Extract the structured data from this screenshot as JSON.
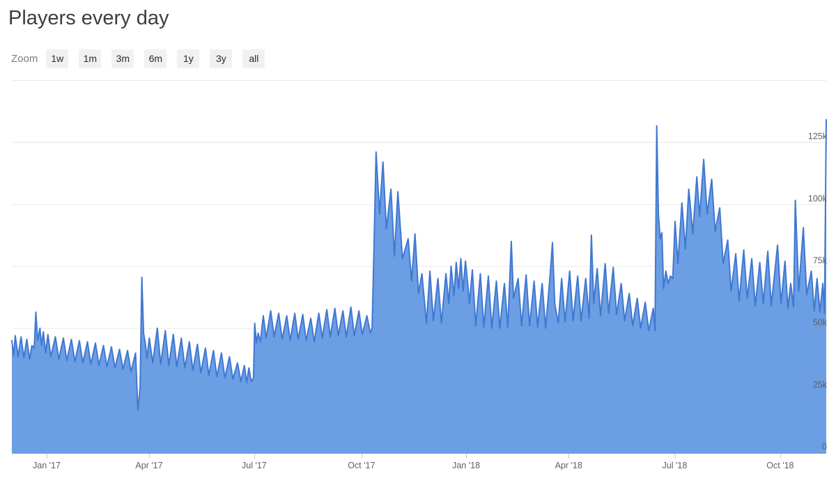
{
  "header": {
    "title": "Players every day"
  },
  "zoom_bar": {
    "label": "Zoom",
    "buttons": [
      "1w",
      "1m",
      "3m",
      "6m",
      "1y",
      "3y",
      "all"
    ]
  },
  "colors": {
    "area_fill": "#6c9ee3",
    "line_stroke": "#4078d2",
    "gridline": "rgba(0,0,0,0.09)",
    "baseline": "#d6d6d6",
    "tick_mark": "#cccccc",
    "axis_label": "#606060",
    "title_text": "#3d3d3d",
    "button_bg": "#f1f1f1",
    "button_text": "#2a2a2a"
  },
  "chart_data": {
    "type": "area",
    "title": "Players every day",
    "xlabel": "",
    "ylabel": "",
    "legend": "none",
    "grid": "horizontal",
    "y_axis_side": "right-inside",
    "ylim_players": [
      0,
      150000
    ],
    "value_unit": "thousands of concurrent players",
    "x_unit": "days since chart start (late Nov 2016); right edge = day 711 (mid Nov 2018)",
    "x_ticks": [
      {
        "day": 30.4,
        "label": "Jan '17"
      },
      {
        "day": 119.8,
        "label": "Apr '17"
      },
      {
        "day": 211.6,
        "label": "Jul '17"
      },
      {
        "day": 305.2,
        "label": "Oct '17"
      },
      {
        "day": 396.6,
        "label": "Jan '18"
      },
      {
        "day": 486.1,
        "label": "Apr '18"
      },
      {
        "day": 578.7,
        "label": "Jul '18"
      },
      {
        "day": 670.8,
        "label": "Oct '18"
      }
    ],
    "y_ticks": [
      {
        "k": 0,
        "label": "0"
      },
      {
        "k": 25,
        "label": "25k"
      },
      {
        "k": 50,
        "label": "50k"
      },
      {
        "k": 75,
        "label": "75k"
      },
      {
        "k": 100,
        "label": "100k"
      },
      {
        "k": 125,
        "label": "125k"
      },
      {
        "k": 150,
        "label": ""
      }
    ],
    "series": [
      {
        "name": "Players",
        "points_day_kplayers": [
          [
            0,
            45
          ],
          [
            1.5,
            39
          ],
          [
            3,
            47
          ],
          [
            5.5,
            38.5
          ],
          [
            8,
            46.5
          ],
          [
            10.5,
            38
          ],
          [
            13,
            45.5
          ],
          [
            15.5,
            37.5
          ],
          [
            17.5,
            43
          ],
          [
            19.5,
            42
          ],
          [
            21,
            56.5
          ],
          [
            22.5,
            45
          ],
          [
            24.5,
            50
          ],
          [
            26,
            43
          ],
          [
            27.5,
            48.5
          ],
          [
            29.5,
            40
          ],
          [
            31.5,
            47.5
          ],
          [
            34,
            38.5
          ],
          [
            38,
            46.5
          ],
          [
            41,
            37.5
          ],
          [
            45,
            46
          ],
          [
            48,
            37
          ],
          [
            52,
            45.5
          ],
          [
            55,
            36.5
          ],
          [
            59,
            45
          ],
          [
            62,
            36
          ],
          [
            66,
            44.5
          ],
          [
            69,
            35.5
          ],
          [
            73,
            44
          ],
          [
            76,
            35
          ],
          [
            80,
            43
          ],
          [
            83,
            34.5
          ],
          [
            87,
            42.5
          ],
          [
            90,
            34
          ],
          [
            94,
            41.5
          ],
          [
            97,
            33.5
          ],
          [
            101,
            41
          ],
          [
            104,
            32.5
          ],
          [
            108,
            40
          ],
          [
            110,
            17
          ],
          [
            112,
            26
          ],
          [
            113.5,
            70.5
          ],
          [
            115,
            48
          ],
          [
            116.5,
            44
          ],
          [
            118,
            38
          ],
          [
            120,
            46
          ],
          [
            123,
            36
          ],
          [
            127,
            50
          ],
          [
            130,
            35.5
          ],
          [
            134,
            49
          ],
          [
            137,
            35
          ],
          [
            141,
            47.5
          ],
          [
            144,
            34.5
          ],
          [
            148,
            46
          ],
          [
            151,
            34
          ],
          [
            155,
            44.5
          ],
          [
            158,
            33
          ],
          [
            162,
            43.5
          ],
          [
            165,
            32
          ],
          [
            169,
            42
          ],
          [
            172,
            31
          ],
          [
            176,
            41
          ],
          [
            179,
            30.5
          ],
          [
            183,
            40
          ],
          [
            186,
            30
          ],
          [
            190,
            38.5
          ],
          [
            193,
            29.5
          ],
          [
            197,
            36
          ],
          [
            200,
            28.5
          ],
          [
            203,
            35
          ],
          [
            205,
            28
          ],
          [
            207,
            34
          ],
          [
            209,
            28.5
          ],
          [
            211,
            30
          ],
          [
            212,
            52
          ],
          [
            213.5,
            44
          ],
          [
            215,
            48
          ],
          [
            217,
            44.5
          ],
          [
            219.5,
            55
          ],
          [
            222,
            46
          ],
          [
            226,
            57
          ],
          [
            229,
            46.5
          ],
          [
            233,
            56
          ],
          [
            236,
            45.5
          ],
          [
            240,
            55
          ],
          [
            243,
            45
          ],
          [
            247,
            56
          ],
          [
            250,
            45.5
          ],
          [
            254,
            55.5
          ],
          [
            257,
            45
          ],
          [
            261,
            54
          ],
          [
            264,
            44.5
          ],
          [
            268,
            56
          ],
          [
            271,
            46
          ],
          [
            275,
            57.5
          ],
          [
            278,
            46.5
          ],
          [
            282,
            58
          ],
          [
            285,
            47
          ],
          [
            289,
            57
          ],
          [
            292,
            46.5
          ],
          [
            296,
            58.5
          ],
          [
            299,
            47
          ],
          [
            303,
            57
          ],
          [
            306,
            47.5
          ],
          [
            310,
            55
          ],
          [
            313,
            48
          ],
          [
            314.5,
            50
          ],
          [
            316,
            80
          ],
          [
            318,
            121
          ],
          [
            321,
            96
          ],
          [
            324,
            117
          ],
          [
            327,
            90
          ],
          [
            331,
            106
          ],
          [
            334,
            79
          ],
          [
            337,
            105
          ],
          [
            341,
            78
          ],
          [
            346,
            86
          ],
          [
            349,
            69
          ],
          [
            352,
            88
          ],
          [
            355,
            64
          ],
          [
            358,
            72
          ],
          [
            362,
            52
          ],
          [
            365,
            73
          ],
          [
            368,
            53
          ],
          [
            372,
            70
          ],
          [
            375,
            52
          ],
          [
            379,
            72
          ],
          [
            381.5,
            60
          ],
          [
            383.5,
            75
          ],
          [
            386,
            63
          ],
          [
            388,
            76.5
          ],
          [
            390,
            66
          ],
          [
            392,
            78
          ],
          [
            394,
            65
          ],
          [
            396,
            77
          ],
          [
            398,
            68
          ],
          [
            399.5,
            60
          ],
          [
            402,
            73.5
          ],
          [
            405,
            51
          ],
          [
            409,
            72
          ],
          [
            412,
            50.5
          ],
          [
            416,
            71
          ],
          [
            419,
            50
          ],
          [
            423,
            69
          ],
          [
            426,
            50
          ],
          [
            430,
            68
          ],
          [
            433,
            50.5
          ],
          [
            436,
            85
          ],
          [
            438,
            62
          ],
          [
            442,
            70
          ],
          [
            445,
            51
          ],
          [
            449,
            71.5
          ],
          [
            452,
            51
          ],
          [
            456,
            69
          ],
          [
            459,
            50.5
          ],
          [
            463,
            68
          ],
          [
            466,
            50
          ],
          [
            470,
            72
          ],
          [
            472,
            84.5
          ],
          [
            474,
            60
          ],
          [
            477,
            52
          ],
          [
            480,
            70
          ],
          [
            483,
            52.5
          ],
          [
            487,
            73
          ],
          [
            490,
            53
          ],
          [
            494,
            71
          ],
          [
            497,
            53
          ],
          [
            501,
            70
          ],
          [
            504,
            54
          ],
          [
            506,
            87.5
          ],
          [
            508,
            60
          ],
          [
            511,
            74
          ],
          [
            514,
            55
          ],
          [
            518,
            76
          ],
          [
            521,
            56
          ],
          [
            525,
            74.5
          ],
          [
            528,
            55.5
          ],
          [
            532,
            68
          ],
          [
            535,
            53
          ],
          [
            539,
            64
          ],
          [
            542,
            51
          ],
          [
            546,
            62
          ],
          [
            549,
            50
          ],
          [
            553,
            60.5
          ],
          [
            556,
            49
          ],
          [
            560,
            58
          ],
          [
            561.5,
            49
          ],
          [
            563,
            131.5
          ],
          [
            564.5,
            96
          ],
          [
            566,
            86
          ],
          [
            567.5,
            88.5
          ],
          [
            569,
            66
          ],
          [
            571,
            73
          ],
          [
            573,
            68
          ],
          [
            575,
            71
          ],
          [
            577,
            70
          ],
          [
            579,
            93
          ],
          [
            581.5,
            76
          ],
          [
            585,
            100.5
          ],
          [
            588,
            82
          ],
          [
            591,
            106
          ],
          [
            594.5,
            88
          ],
          [
            598,
            111
          ],
          [
            600.5,
            95
          ],
          [
            604,
            118
          ],
          [
            607,
            96
          ],
          [
            611,
            110
          ],
          [
            614,
            89
          ],
          [
            618,
            98.5
          ],
          [
            621,
            76
          ],
          [
            625,
            85.5
          ],
          [
            628,
            65
          ],
          [
            632,
            80
          ],
          [
            635,
            61
          ],
          [
            639,
            81.5
          ],
          [
            642,
            62
          ],
          [
            646,
            78
          ],
          [
            649,
            59
          ],
          [
            653,
            76.5
          ],
          [
            656,
            60
          ],
          [
            660,
            81
          ],
          [
            663,
            59
          ],
          [
            668.5,
            83.5
          ],
          [
            671.5,
            60
          ],
          [
            675,
            77
          ],
          [
            677.5,
            58
          ],
          [
            680,
            68
          ],
          [
            682.5,
            58.5
          ],
          [
            684,
            101.5
          ],
          [
            687,
            65
          ],
          [
            691,
            90.5
          ],
          [
            694,
            63.5
          ],
          [
            698,
            73
          ],
          [
            700.5,
            57
          ],
          [
            703,
            70
          ],
          [
            705.5,
            56.5
          ],
          [
            708,
            68
          ],
          [
            709.5,
            56
          ],
          [
            711,
            134
          ]
        ]
      }
    ],
    "annotations": [
      "weekly weekend peaks throughout",
      "early Apr 2017: dip to ~17k then one-day spike to ~70k",
      "mid Oct 2017: surge peaking ~121k, decaying through Nov",
      "mid Jun 2018: one-day needle to ~131k",
      "late Jul 2018: sustained cluster peaking ~118k",
      "right edge (Nov 2018): final spike to ~134k"
    ]
  }
}
